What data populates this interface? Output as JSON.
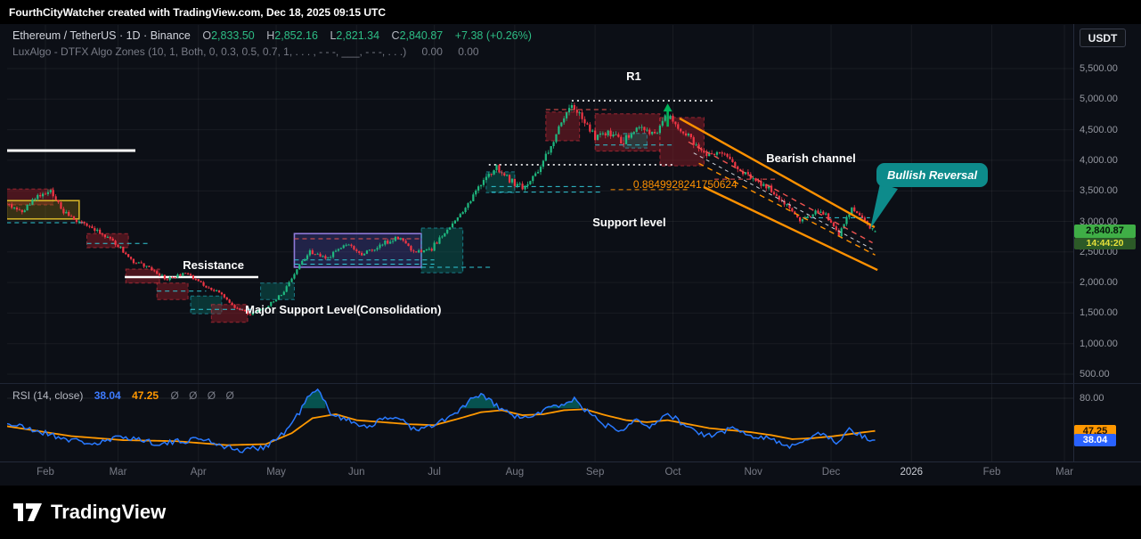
{
  "attribution": "FourthCityWatcher created with TradingView.com, Dec 18, 2025 09:15 UTC",
  "header": {
    "symbol": "Ethereum / TetherUS · 1D · Binance",
    "o_label": "O",
    "o_value": "2,833.50",
    "h_label": "H",
    "h_value": "2,852.16",
    "l_label": "L",
    "l_value": "2,821.34",
    "c_label": "C",
    "c_value": "2,840.87",
    "change": "+7.38 (+0.26%)",
    "indicator_name": "LuxAlgo - DTFX Algo Zones (10, 1, Both, 0, 0.3, 0.5, 0.7, 1, . . . , - - -, ___, - - -, . . .)",
    "indicator_values": [
      "0.00",
      "0.00"
    ]
  },
  "currency_button": "USDT",
  "price_label": {
    "value": "2,840.87",
    "countdown": "14:44:20"
  },
  "rsi": {
    "legend": "RSI (14, close)",
    "value": "38.04",
    "ma": "47.25",
    "zeros": "Ø Ø Ø Ø",
    "axis_label": "80.00",
    "badge_value": "38.04",
    "badge_ma": "47.25"
  },
  "annotations": {
    "r1": "R1",
    "bearish_channel": "Bearish channel",
    "bullish_reversal": "Bullish Reversal",
    "support_level": "Support level",
    "resistance": "Resistance",
    "major_support": "Major Support Level(Consolidation)",
    "fib": "0.8849928241750624"
  },
  "logo": {
    "text": "TradingView"
  },
  "colors": {
    "background": "#0c0f16",
    "panel": "#000000",
    "grid": "rgba(255,255,255,0.055)",
    "up": "#1fb87f",
    "down": "#f23645",
    "rsi_line": "#2979ff",
    "rsi_ma": "#ff9800",
    "channel": "#ff9100",
    "aqua": "#30c8d6",
    "red_dash": "#ef5350",
    "callout_teal": "#0d8b8b",
    "arrow_green": "#00b35a",
    "badge_price_bg": "#3fae46",
    "badge_count_bg": "#2c5a27",
    "badge_count_text": "#e5e03a",
    "badge_rsi_bg": "#2962ff",
    "badge_ma_bg": "#ff9800",
    "axis_text": "#9598a1",
    "muted": "#787b86",
    "green_text": "#2dbd85"
  },
  "chart_data": {
    "type": "candlestick",
    "title": "Ethereum / TetherUS 1D Binance with LuxAlgo DTFX Algo Zones and RSI(14)",
    "ylabel": "Price (USDT)",
    "ylim": [
      500,
      5500
    ],
    "grid": true,
    "last_price": 2840.87,
    "ohlc_current": {
      "open": 2833.5,
      "high": 2852.16,
      "low": 2821.34,
      "close": 2840.87,
      "change": 7.38,
      "change_pct": 0.26
    },
    "rsi_last": 38.04,
    "rsi_ma_last": 47.25,
    "rsi_upper_band": 80,
    "price_ticks": [
      {
        "label": "5,500.00",
        "price": 5500
      },
      {
        "label": "5,000.00",
        "price": 5000
      },
      {
        "label": "4,500.00",
        "price": 4500
      },
      {
        "label": "4,000.00",
        "price": 4000
      },
      {
        "label": "3,500.00",
        "price": 3500
      },
      {
        "label": "3,000.00",
        "price": 3000
      },
      {
        "label": "2,500.00",
        "price": 2500
      },
      {
        "label": "2,000.00",
        "price": 2000
      },
      {
        "label": "1,500.00",
        "price": 1500
      },
      {
        "label": "1,000.00",
        "price": 1000
      },
      {
        "label": "500.00",
        "price": 500
      }
    ],
    "time_ticks": [
      {
        "label": "Feb",
        "day": 0
      },
      {
        "label": "Mar",
        "day": 28
      },
      {
        "label": "Apr",
        "day": 59
      },
      {
        "label": "May",
        "day": 89
      },
      {
        "label": "Jun",
        "day": 120
      },
      {
        "label": "Jul",
        "day": 150
      },
      {
        "label": "Aug",
        "day": 181
      },
      {
        "label": "Sep",
        "day": 212
      },
      {
        "label": "Oct",
        "day": 242
      },
      {
        "label": "Nov",
        "day": 273
      },
      {
        "label": "Dec",
        "day": 303
      },
      {
        "label": "2026",
        "day": 334,
        "year": true
      },
      {
        "label": "Feb",
        "day": 365
      },
      {
        "label": "Mar",
        "day": 393
      }
    ],
    "price_anchors": [
      [
        -15,
        3300
      ],
      [
        -8,
        3150
      ],
      [
        -2,
        3420
      ],
      [
        3,
        3470
      ],
      [
        8,
        3150
      ],
      [
        14,
        3000
      ],
      [
        20,
        2850
      ],
      [
        27,
        2700
      ],
      [
        34,
        2350
      ],
      [
        40,
        2250
      ],
      [
        48,
        2050
      ],
      [
        55,
        2160
      ],
      [
        62,
        1950
      ],
      [
        68,
        1840
      ],
      [
        74,
        1600
      ],
      [
        80,
        1480
      ],
      [
        86,
        1590
      ],
      [
        92,
        1800
      ],
      [
        97,
        2150
      ],
      [
        103,
        2500
      ],
      [
        110,
        2400
      ],
      [
        117,
        2650
      ],
      [
        123,
        2450
      ],
      [
        130,
        2600
      ],
      [
        137,
        2750
      ],
      [
        143,
        2500
      ],
      [
        150,
        2560
      ],
      [
        157,
        2900
      ],
      [
        164,
        3300
      ],
      [
        170,
        3700
      ],
      [
        175,
        3880
      ],
      [
        181,
        3650
      ],
      [
        186,
        3560
      ],
      [
        192,
        3900
      ],
      [
        198,
        4420
      ],
      [
        204,
        4930
      ],
      [
        208,
        4700
      ],
      [
        213,
        4360
      ],
      [
        218,
        4460
      ],
      [
        224,
        4300
      ],
      [
        230,
        4560
      ],
      [
        236,
        4420
      ],
      [
        240,
        4740
      ],
      [
        244,
        4580
      ],
      [
        250,
        4340
      ],
      [
        256,
        4060
      ],
      [
        262,
        4160
      ],
      [
        268,
        3860
      ],
      [
        274,
        3700
      ],
      [
        280,
        3540
      ],
      [
        286,
        3300
      ],
      [
        292,
        3010
      ],
      [
        298,
        3160
      ],
      [
        303,
        3060
      ],
      [
        307,
        2790
      ],
      [
        312,
        3210
      ],
      [
        316,
        3060
      ],
      [
        320,
        2841
      ]
    ],
    "rsi_anchors": [
      [
        -15,
        55
      ],
      [
        0,
        45
      ],
      [
        10,
        38
      ],
      [
        20,
        34
      ],
      [
        30,
        42
      ],
      [
        45,
        34
      ],
      [
        60,
        40
      ],
      [
        75,
        27
      ],
      [
        85,
        32
      ],
      [
        92,
        45
      ],
      [
        97,
        62
      ],
      [
        101,
        80
      ],
      [
        105,
        88
      ],
      [
        110,
        66
      ],
      [
        117,
        57
      ],
      [
        124,
        52
      ],
      [
        130,
        58
      ],
      [
        136,
        62
      ],
      [
        143,
        47
      ],
      [
        150,
        53
      ],
      [
        158,
        64
      ],
      [
        164,
        78
      ],
      [
        169,
        83
      ],
      [
        174,
        72
      ],
      [
        180,
        63
      ],
      [
        186,
        59
      ],
      [
        192,
        68
      ],
      [
        198,
        73
      ],
      [
        204,
        79
      ],
      [
        210,
        64
      ],
      [
        216,
        53
      ],
      [
        222,
        49
      ],
      [
        228,
        60
      ],
      [
        234,
        51
      ],
      [
        240,
        65
      ],
      [
        246,
        54
      ],
      [
        252,
        45
      ],
      [
        258,
        41
      ],
      [
        264,
        51
      ],
      [
        270,
        44
      ],
      [
        276,
        42
      ],
      [
        282,
        37
      ],
      [
        288,
        31
      ],
      [
        294,
        41
      ],
      [
        300,
        46
      ],
      [
        305,
        34
      ],
      [
        310,
        49
      ],
      [
        315,
        42
      ],
      [
        320,
        38.04
      ]
    ],
    "rsi_ma_anchors": [
      [
        -15,
        52
      ],
      [
        10,
        42
      ],
      [
        30,
        38
      ],
      [
        50,
        37
      ],
      [
        70,
        33
      ],
      [
        85,
        34
      ],
      [
        95,
        45
      ],
      [
        103,
        60
      ],
      [
        112,
        64
      ],
      [
        120,
        58
      ],
      [
        130,
        56
      ],
      [
        140,
        54
      ],
      [
        150,
        53
      ],
      [
        160,
        60
      ],
      [
        168,
        66
      ],
      [
        176,
        68
      ],
      [
        184,
        63
      ],
      [
        192,
        64
      ],
      [
        200,
        68
      ],
      [
        208,
        69
      ],
      [
        216,
        63
      ],
      [
        224,
        58
      ],
      [
        232,
        56
      ],
      [
        240,
        58
      ],
      [
        248,
        54
      ],
      [
        256,
        50
      ],
      [
        264,
        48
      ],
      [
        272,
        46
      ],
      [
        280,
        43
      ],
      [
        288,
        39
      ],
      [
        296,
        40
      ],
      [
        304,
        42
      ],
      [
        310,
        44
      ],
      [
        316,
        46
      ],
      [
        320,
        47.25
      ]
    ],
    "zones": [
      {
        "d": [
          -15,
          3
        ],
        "p": [
          3270,
          3530
        ],
        "kind": "maroon"
      },
      {
        "d": [
          -15,
          13
        ],
        "p": [
          3040,
          3340
        ],
        "kind": "yellow",
        "solid": true
      },
      {
        "d": [
          16,
          32
        ],
        "p": [
          2570,
          2800
        ],
        "kind": "maroon"
      },
      {
        "d": [
          31,
          44
        ],
        "p": [
          1990,
          2220
        ],
        "kind": "maroon"
      },
      {
        "d": [
          43,
          55
        ],
        "p": [
          1720,
          1990
        ],
        "kind": "maroon"
      },
      {
        "d": [
          56,
          68
        ],
        "p": [
          1490,
          1780
        ],
        "kind": "teal"
      },
      {
        "d": [
          64,
          78
        ],
        "p": [
          1350,
          1640
        ],
        "kind": "maroon"
      },
      {
        "d": [
          83,
          96
        ],
        "p": [
          1720,
          1990
        ],
        "kind": "teal"
      },
      {
        "d": [
          96,
          145
        ],
        "p": [
          2250,
          2800
        ],
        "kind": "purple",
        "solid": true
      },
      {
        "d": [
          145,
          161
        ],
        "p": [
          2160,
          2890
        ],
        "kind": "teal"
      },
      {
        "d": [
          170,
          181
        ],
        "p": [
          3470,
          3810
        ],
        "kind": "teal"
      },
      {
        "d": [
          193,
          206
        ],
        "p": [
          4320,
          4790
        ],
        "kind": "maroon"
      },
      {
        "d": [
          212,
          237
        ],
        "p": [
          4150,
          4760
        ],
        "kind": "maroon"
      },
      {
        "d": [
          223,
          232
        ],
        "p": [
          4200,
          4440
        ],
        "kind": "teal"
      },
      {
        "d": [
          237,
          254
        ],
        "p": [
          3910,
          4700
        ],
        "kind": "maroon"
      }
    ],
    "lines": [
      {
        "name": "white-ray",
        "d": [
          -14.8,
          34.7
        ],
        "p": [
          4158,
          4158
        ],
        "color": "#ffffff",
        "w": 3
      },
      {
        "name": "resistance-line",
        "d": [
          30.6,
          82.1
        ],
        "p": [
          2089,
          2089
        ],
        "color": "#ffffff",
        "w": 2.5
      },
      {
        "name": "r1-dotted",
        "d": [
          203,
          258
        ],
        "p": [
          4975,
          4975
        ],
        "color": "#ffffff",
        "w": 1.6,
        "dash": "2,4"
      },
      {
        "name": "mid-dotted",
        "d": [
          171,
          242
        ],
        "p": [
          3926,
          3926
        ],
        "color": "#ffffff",
        "w": 1.6,
        "dash": "2,4"
      },
      {
        "d": [
          -15,
          16
        ],
        "p": [
          2978,
          2978
        ],
        "color": "#30c8d6",
        "w": 1,
        "dash": "5,4"
      },
      {
        "d": [
          16,
          40
        ],
        "p": [
          2640,
          2640
        ],
        "color": "#30c8d6",
        "w": 1,
        "dash": "5,4"
      },
      {
        "d": [
          43,
          62
        ],
        "p": [
          1860,
          1860
        ],
        "color": "#30c8d6",
        "w": 1,
        "dash": "5,4"
      },
      {
        "d": [
          56,
          80
        ],
        "p": [
          1560,
          1560
        ],
        "color": "#30c8d6",
        "w": 1,
        "dash": "5,4"
      },
      {
        "d": [
          96,
          150
        ],
        "p": [
          2370,
          2370
        ],
        "color": "#30c8d6",
        "w": 1,
        "dash": "5,4"
      },
      {
        "d": [
          96,
          150
        ],
        "p": [
          2300,
          2300
        ],
        "color": "#30c8d6",
        "w": 1,
        "dash": "5,4"
      },
      {
        "d": [
          96,
          145
        ],
        "p": [
          2716,
          2716
        ],
        "color": "#ef5350",
        "w": 1,
        "dash": "5,4"
      },
      {
        "d": [
          145,
          172
        ],
        "p": [
          2250,
          2250
        ],
        "color": "#30c8d6",
        "w": 1,
        "dash": "5,4"
      },
      {
        "d": [
          172,
          214
        ],
        "p": [
          3570,
          3570
        ],
        "color": "#30c8d6",
        "w": 1,
        "dash": "5,4"
      },
      {
        "d": [
          172,
          214
        ],
        "p": [
          3480,
          3480
        ],
        "color": "#30c8d6",
        "w": 1,
        "dash": "5,4"
      },
      {
        "d": [
          212,
          242
        ],
        "p": [
          4250,
          4250
        ],
        "color": "#30c8d6",
        "w": 1,
        "dash": "5,4"
      },
      {
        "d": [
          193,
          218
        ],
        "p": [
          4830,
          4830
        ],
        "color": "#ef5350",
        "w": 1,
        "dash": "5,4"
      },
      {
        "d": [
          218,
          248
        ],
        "p": [
          3520,
          3520
        ],
        "color": "#ff9100",
        "w": 1,
        "dash": "5,4"
      },
      {
        "d": [
          258,
          282
        ],
        "p": [
          3690,
          3690
        ],
        "color": "#ef5350",
        "w": 1,
        "dash": "5,4"
      },
      {
        "d": [
          292,
          318
        ],
        "p": [
          3060,
          3060
        ],
        "color": "#30c8d6",
        "w": 1,
        "dash": "5,4"
      }
    ],
    "channel": [
      {
        "d": [
          244.6,
          319.8
        ],
        "p": [
          4684,
          2905
        ],
        "color": "#ff9100",
        "w": 2.4
      },
      {
        "d": [
          253.9,
          320.9
        ],
        "p": [
          3561,
          2205
        ],
        "color": "#ff9100",
        "w": 2.4
      },
      {
        "d": [
          248,
          319
        ],
        "p": [
          4300,
          2650
        ],
        "color": "#ef5350",
        "w": 1.4,
        "dash": "6,5"
      },
      {
        "d": [
          252,
          320
        ],
        "p": [
          3950,
          2450
        ],
        "color": "#ff9100",
        "w": 1.4,
        "dash": "6,5"
      },
      {
        "d": [
          250,
          320
        ],
        "p": [
          4120,
          2520
        ],
        "color": "#cfd2da",
        "w": 1,
        "dash": "4,4"
      }
    ],
    "arrow": {
      "day": 240,
      "p_from": 4550,
      "p_to": 4930
    },
    "labels": [
      {
        "name": "r1",
        "d": 224,
        "p": 5486
      },
      {
        "name": "bearish_channel",
        "d": 278,
        "p": 4140
      },
      {
        "name": "support_level",
        "d": 211,
        "p": 3095
      },
      {
        "name": "resistance",
        "d": 53,
        "p": 2395
      },
      {
        "name": "major_support",
        "d": 77,
        "p": 1666
      },
      {
        "name": "fib",
        "d": 226.7,
        "p": 3707
      },
      {
        "name": "bullish_reversal",
        "d": 320.5,
        "p": 3955
      }
    ]
  }
}
